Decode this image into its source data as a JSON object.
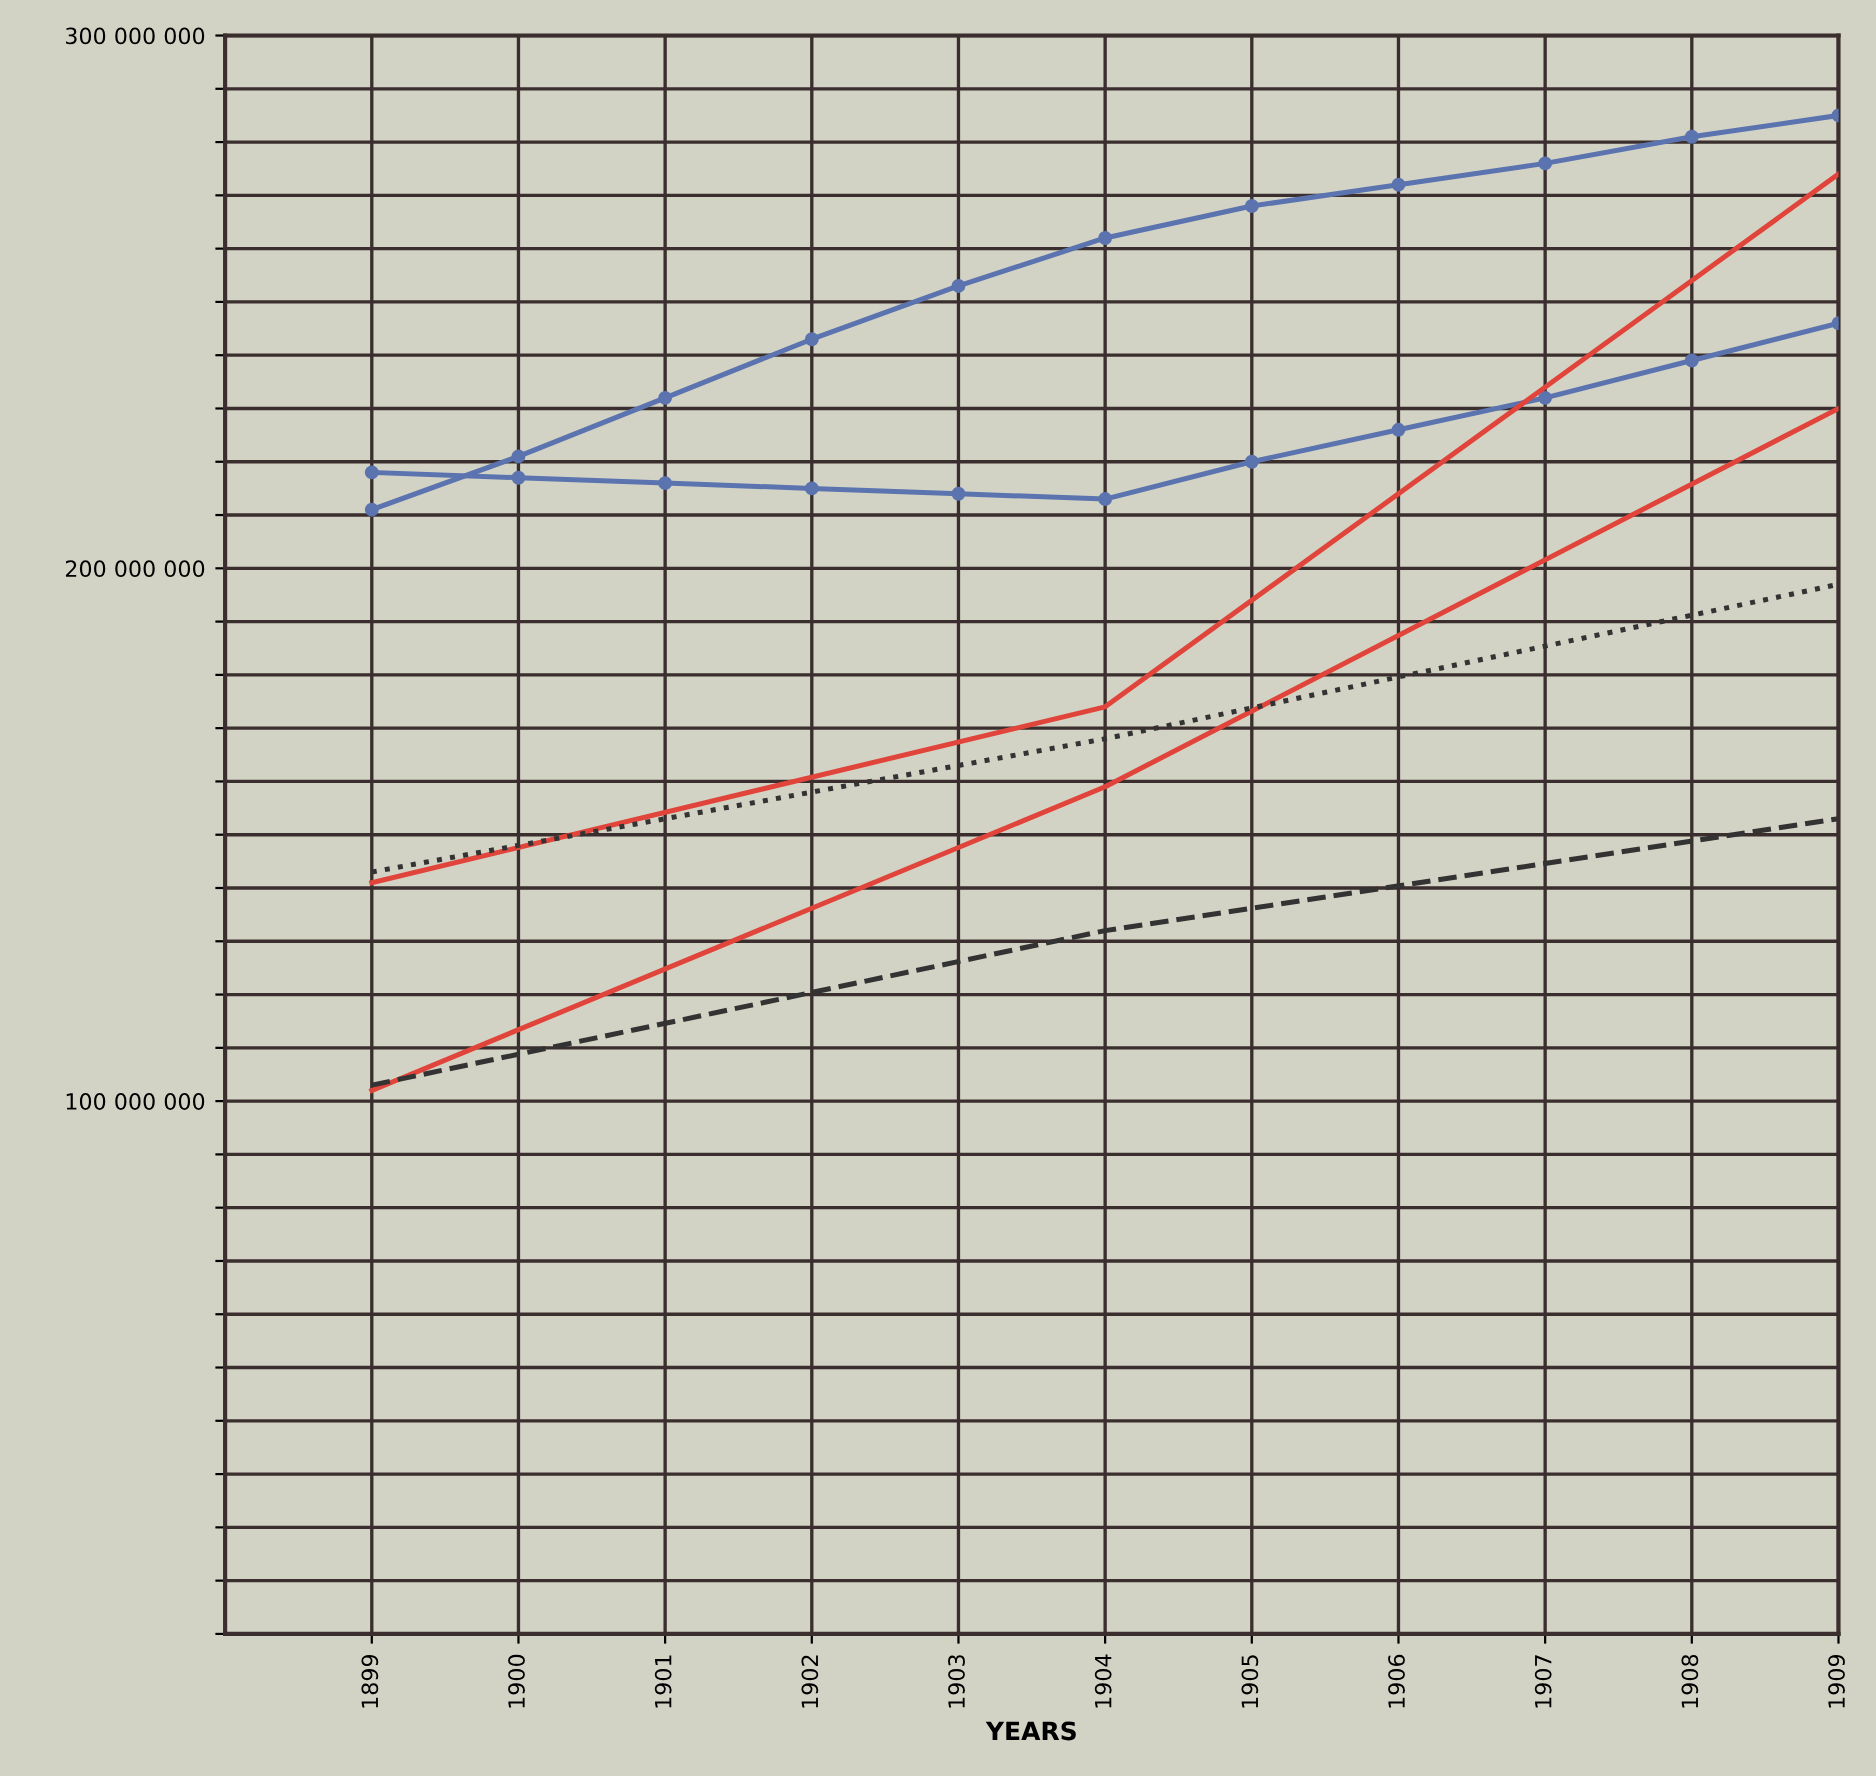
{
  "chart_data": {
    "type": "line",
    "xlabel": "YEARS",
    "x": [
      1899,
      1900,
      1901,
      1902,
      1903,
      1904,
      1905,
      1906,
      1907,
      1908,
      1909
    ],
    "series": [
      {
        "color": "#5b74b0",
        "marker": "circle",
        "line_style": "solid",
        "values": [
          211000000,
          221000000,
          232000000,
          243000000,
          253000000,
          262000000,
          268000000,
          272000000,
          276000000,
          281000000,
          285000000
        ]
      },
      {
        "color": "#5b74b0",
        "marker": "circle",
        "line_style": "solid",
        "values": [
          218000000,
          217000000,
          216000000,
          215000000,
          214000000,
          213000000,
          220000000,
          226000000,
          232000000,
          239000000,
          246000000
        ]
      },
      {
        "color": "#e0443a",
        "marker": "none",
        "line_style": "solid",
        "values": [
          141000000,
          null,
          null,
          null,
          null,
          174000000,
          null,
          null,
          null,
          null,
          274000000
        ]
      },
      {
        "color": "#e0443a",
        "marker": "none",
        "line_style": "solid",
        "values": [
          102000000,
          null,
          null,
          null,
          null,
          159000000,
          null,
          null,
          null,
          null,
          230000000
        ]
      },
      {
        "color": "#333333",
        "marker": "none",
        "line_style": "dotted",
        "values": [
          143000000,
          null,
          null,
          null,
          null,
          168000000,
          null,
          null,
          null,
          null,
          197000000
        ]
      },
      {
        "color": "#333333",
        "marker": "none",
        "line_style": "dashed",
        "values": [
          103000000,
          null,
          null,
          null,
          null,
          132000000,
          null,
          null,
          null,
          null,
          153000000
        ]
      }
    ],
    "xlim": [
      1898,
      1909
    ],
    "xticks": [
      1899,
      1900,
      1901,
      1902,
      1903,
      1904,
      1905,
      1906,
      1907,
      1908,
      1909
    ],
    "ylim": [
      0,
      300000000
    ],
    "yticks": [
      {
        "value": 0,
        "label": null
      },
      {
        "value": 10000000,
        "label": null
      },
      {
        "value": 20000000,
        "label": null
      },
      {
        "value": 30000000,
        "label": null
      },
      {
        "value": 40000000,
        "label": null
      },
      {
        "value": 50000000,
        "label": null
      },
      {
        "value": 60000000,
        "label": null
      },
      {
        "value": 70000000,
        "label": null
      },
      {
        "value": 80000000,
        "label": null
      },
      {
        "value": 90000000,
        "label": null
      },
      {
        "value": 100000000,
        "label": "100 000 000"
      },
      {
        "value": 110000000,
        "label": null
      },
      {
        "value": 120000000,
        "label": null
      },
      {
        "value": 130000000,
        "label": null
      },
      {
        "value": 140000000,
        "label": null
      },
      {
        "value": 150000000,
        "label": null
      },
      {
        "value": 160000000,
        "label": null
      },
      {
        "value": 170000000,
        "label": null
      },
      {
        "value": 180000000,
        "label": null
      },
      {
        "value": 190000000,
        "label": null
      },
      {
        "value": 200000000,
        "label": "200 000 000"
      },
      {
        "value": 210000000,
        "label": null
      },
      {
        "value": 220000000,
        "label": null
      },
      {
        "value": 230000000,
        "label": null
      },
      {
        "value": 240000000,
        "label": null
      },
      {
        "value": 250000000,
        "label": null
      },
      {
        "value": 260000000,
        "label": null
      },
      {
        "value": 270000000,
        "label": null
      },
      {
        "value": 280000000,
        "label": null
      },
      {
        "value": 290000000,
        "label": null
      },
      {
        "value": 300000000,
        "label": "300 000 000"
      }
    ],
    "grid": true
  }
}
